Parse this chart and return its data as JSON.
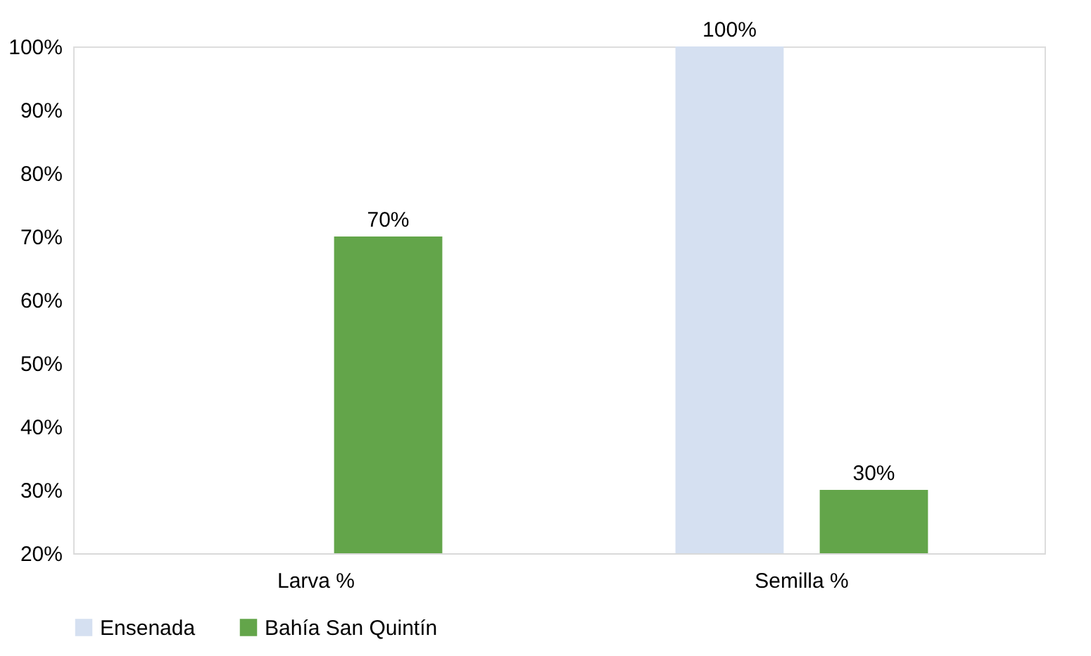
{
  "chart_data": {
    "type": "bar",
    "categories": [
      "Larva %",
      "Semilla %"
    ],
    "series": [
      {
        "name": "Ensenada",
        "color": "#d5e0f1",
        "values": [
          null,
          100
        ],
        "value_labels": [
          null,
          "100%"
        ]
      },
      {
        "name": "Bahía San Quintín",
        "color": "#63a54a",
        "values": [
          70,
          30
        ],
        "value_labels": [
          "70%",
          "30%"
        ]
      }
    ],
    "ylim": [
      20,
      100
    ],
    "yticks": [
      {
        "value": 20,
        "label": "20%"
      },
      {
        "value": 30,
        "label": "30%"
      },
      {
        "value": 40,
        "label": "40%"
      },
      {
        "value": 50,
        "label": "50%"
      },
      {
        "value": 60,
        "label": "60%"
      },
      {
        "value": 70,
        "label": "70%"
      },
      {
        "value": 80,
        "label": "80%"
      },
      {
        "value": 90,
        "label": "90%"
      },
      {
        "value": 100,
        "label": "100%"
      }
    ],
    "grid": false,
    "legend": "bottom"
  }
}
